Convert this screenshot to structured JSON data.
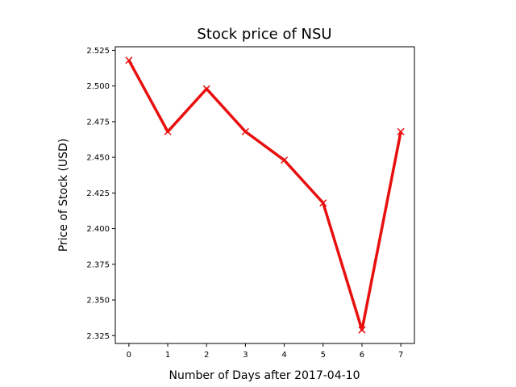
{
  "chart_data": {
    "type": "line",
    "title": "Stock price of NSU",
    "xlabel": "Number of Days after 2017-04-10",
    "ylabel": "Price of Stock (USD)",
    "x": [
      0,
      1,
      2,
      3,
      4,
      5,
      6,
      7
    ],
    "series": [
      {
        "values": [
          2.518,
          2.468,
          2.498,
          2.468,
          2.448,
          2.418,
          2.329,
          2.468
        ],
        "color": "#e8100f",
        "marker": "x"
      }
    ],
    "xticks": [
      "0",
      "1",
      "2",
      "3",
      "4",
      "5",
      "6",
      "7"
    ],
    "yticks": [
      "2.325",
      "2.350",
      "2.375",
      "2.400",
      "2.425",
      "2.450",
      "2.475",
      "2.500",
      "2.525"
    ],
    "xlim": [
      -0.35,
      7.35
    ],
    "ylim": [
      2.3195,
      2.5275
    ],
    "grid": false,
    "legend": "none"
  }
}
